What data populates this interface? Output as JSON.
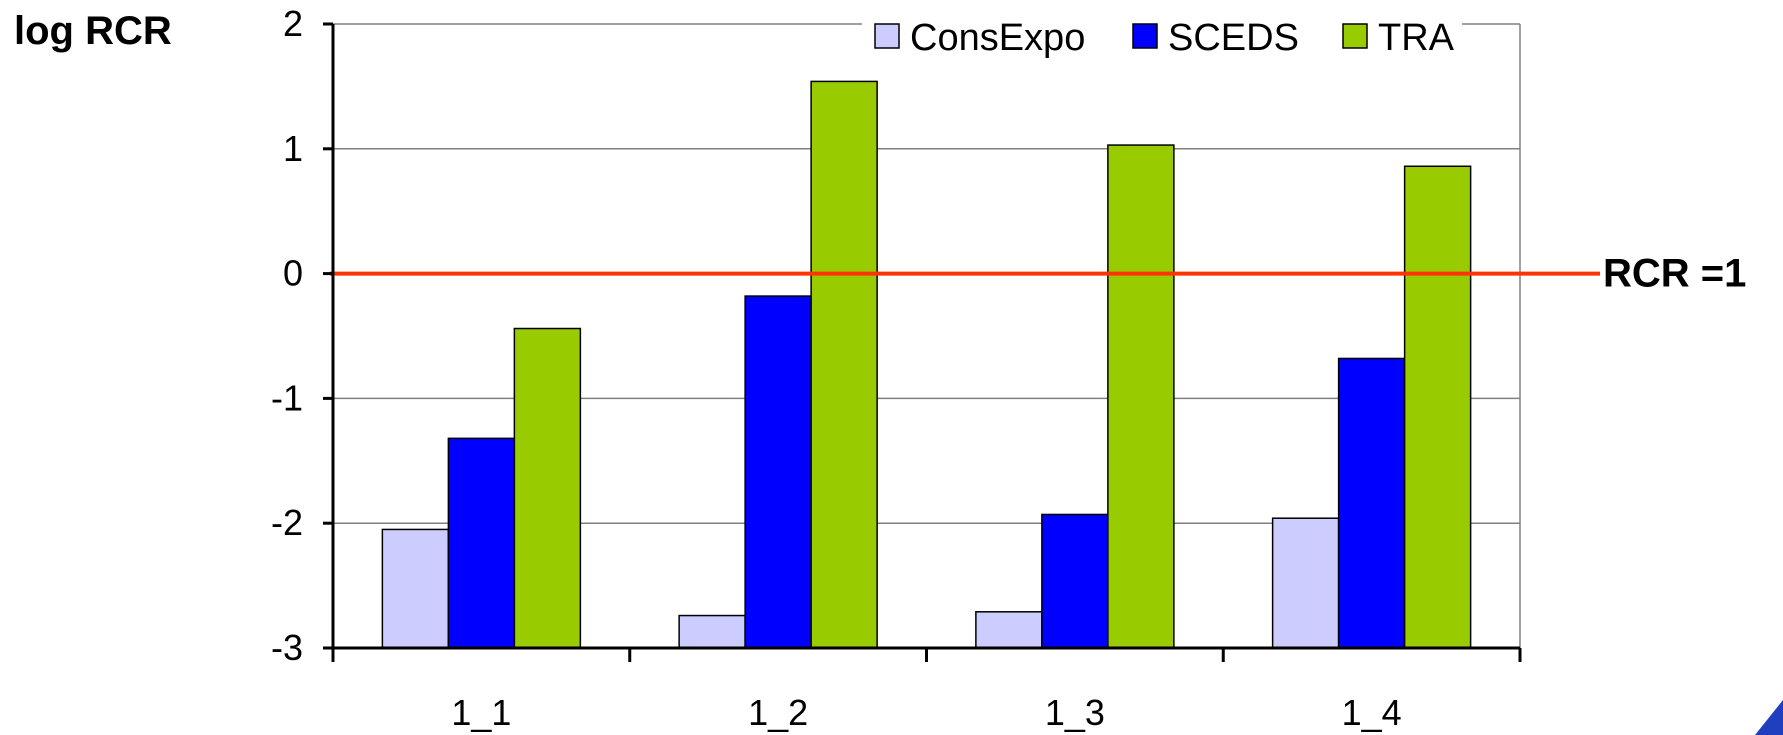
{
  "chart_data": {
    "type": "bar",
    "title": "",
    "ylabel": "log RCR",
    "xlabel": "",
    "categories": [
      "1_1",
      "1_2",
      "1_3",
      "1_4"
    ],
    "series": [
      {
        "name": "ConsExpo",
        "color": "#ccccff",
        "values": [
          -2.05,
          -2.74,
          -2.71,
          -1.96
        ]
      },
      {
        "name": "SCEDS",
        "color": "#0000ff",
        "values": [
          -1.32,
          -0.18,
          -1.93,
          -0.68
        ]
      },
      {
        "name": "TRA",
        "color": "#99cc00",
        "values": [
          -0.44,
          1.54,
          1.03,
          0.86
        ]
      }
    ],
    "ylim": [
      -3,
      2
    ],
    "yticks": [
      "2",
      "1",
      "0",
      "-1",
      "-2",
      "-3"
    ],
    "ytick_values": [
      2,
      1,
      0,
      -1,
      -2,
      -3
    ],
    "grid": true,
    "legend_position": "top-right",
    "reference_line": {
      "value": 0,
      "label": "RCR =1",
      "color": "#ff3300"
    }
  }
}
